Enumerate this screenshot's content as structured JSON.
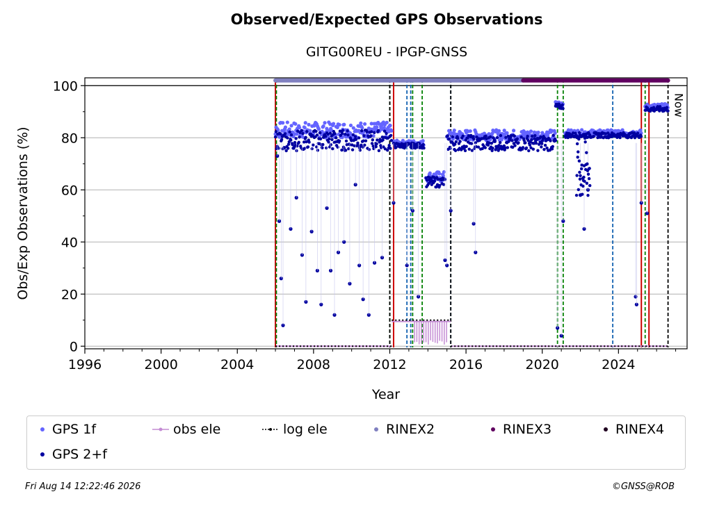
{
  "header": {
    "title": "Observed/Expected GPS Observations",
    "subtitle": "GITG00REU - IPGP-GNSS"
  },
  "footer": {
    "timestamp": "Fri Aug 14 12:22:46 2026",
    "credit": "©GNSS@ROB"
  },
  "colors": {
    "gps_1f": "#6464ff",
    "gps_2f": "#0000a0",
    "obs_ele": "#c48cd4",
    "log_ele": "#000000",
    "rinex2": "#8080c0",
    "rinex3": "#600060",
    "rinex4": "#200020",
    "event_red": "#cc0000",
    "event_green": "#008000",
    "event_blue": "#1060b0"
  },
  "chart_data": {
    "type": "scatter",
    "title": "Observed/Expected GPS Observations",
    "subtitle": "GITG00REU - IPGP-GNSS",
    "xlabel": "Year",
    "ylabel": "Obs/Exp Observations (%)",
    "xlim": [
      1996,
      2027.6
    ],
    "ylim": [
      -1,
      103
    ],
    "x_ticks": [
      1996,
      2000,
      2004,
      2008,
      2012,
      2016,
      2020,
      2024
    ],
    "y_ticks": [
      0,
      20,
      40,
      60,
      80,
      100
    ],
    "grid": "horizontal",
    "now_label": "Now",
    "now_x": 2026.6,
    "legend": {
      "placement": "bottom",
      "entries": [
        "GPS 1f",
        "obs ele",
        "log ele",
        "RINEX2",
        "RINEX3",
        "RINEX4",
        "GPS 2+f"
      ]
    },
    "series": [
      {
        "name": "GPS 1f",
        "segments": [
          {
            "x": [
              2006.0,
              2012.1
            ],
            "level": 83,
            "spread": 3
          },
          {
            "x": [
              2012.2,
              2013.8
            ],
            "level": 78,
            "spread": 1
          },
          {
            "x": [
              2013.9,
              2014.9
            ],
            "level": 65,
            "spread": 2
          },
          {
            "x": [
              2015.0,
              2020.7
            ],
            "level": 81,
            "spread": 2
          },
          {
            "x": [
              2020.7,
              2021.1
            ],
            "level": 93,
            "spread": 1
          },
          {
            "x": [
              2021.2,
              2025.2
            ],
            "level": 82,
            "spread": 1
          },
          {
            "x": [
              2025.4,
              2026.6
            ],
            "level": 92,
            "spread": 1
          }
        ]
      },
      {
        "name": "GPS 2+f",
        "segments": [
          {
            "x": [
              2006.0,
              2012.1
            ],
            "level": 79,
            "spread": 4
          },
          {
            "x": [
              2012.2,
              2013.8
            ],
            "level": 77,
            "spread": 1
          },
          {
            "x": [
              2013.9,
              2014.9
            ],
            "level": 63,
            "spread": 2
          },
          {
            "x": [
              2015.0,
              2020.7
            ],
            "level": 78,
            "spread": 3
          },
          {
            "x": [
              2020.7,
              2021.1
            ],
            "level": 92,
            "spread": 1
          },
          {
            "x": [
              2021.2,
              2025.2
            ],
            "level": 81,
            "spread": 1
          },
          {
            "x": [
              2025.4,
              2026.6
            ],
            "level": 91,
            "spread": 1
          }
        ],
        "outliers": [
          {
            "x": 2006.1,
            "y": 73
          },
          {
            "x": 2006.2,
            "y": 48
          },
          {
            "x": 2006.3,
            "y": 26
          },
          {
            "x": 2006.4,
            "y": 8
          },
          {
            "x": 2006.8,
            "y": 45
          },
          {
            "x": 2007.1,
            "y": 57
          },
          {
            "x": 2007.4,
            "y": 35
          },
          {
            "x": 2007.6,
            "y": 17
          },
          {
            "x": 2007.9,
            "y": 44
          },
          {
            "x": 2008.2,
            "y": 29
          },
          {
            "x": 2008.4,
            "y": 16
          },
          {
            "x": 2008.7,
            "y": 53
          },
          {
            "x": 2008.9,
            "y": 29
          },
          {
            "x": 2009.1,
            "y": 12
          },
          {
            "x": 2009.3,
            "y": 36
          },
          {
            "x": 2009.6,
            "y": 40
          },
          {
            "x": 2009.9,
            "y": 24
          },
          {
            "x": 2010.2,
            "y": 62
          },
          {
            "x": 2010.4,
            "y": 31
          },
          {
            "x": 2010.6,
            "y": 18
          },
          {
            "x": 2010.9,
            "y": 12
          },
          {
            "x": 2011.2,
            "y": 32
          },
          {
            "x": 2011.6,
            "y": 34
          },
          {
            "x": 2012.2,
            "y": 55
          },
          {
            "x": 2012.9,
            "y": 31
          },
          {
            "x": 2013.2,
            "y": 52
          },
          {
            "x": 2013.5,
            "y": 19
          },
          {
            "x": 2014.9,
            "y": 33
          },
          {
            "x": 2015.0,
            "y": 31
          },
          {
            "x": 2015.2,
            "y": 52
          },
          {
            "x": 2016.4,
            "y": 47
          },
          {
            "x": 2016.5,
            "y": 36
          },
          {
            "x": 2020.8,
            "y": 7
          },
          {
            "x": 2021.0,
            "y": 4
          },
          {
            "x": 2021.1,
            "y": 48
          },
          {
            "x": 2022.0,
            "y": 58
          },
          {
            "x": 2022.2,
            "y": 45
          },
          {
            "x": 2022.4,
            "y": 60
          },
          {
            "x": 2024.9,
            "y": 19
          },
          {
            "x": 2024.95,
            "y": 16
          },
          {
            "x": 2025.2,
            "y": 55
          },
          {
            "x": 2025.5,
            "y": 51
          }
        ]
      },
      {
        "name": "obs ele",
        "segments": [
          {
            "x": [
              2006.0,
              2012.1
            ],
            "level": 0
          },
          {
            "x": [
              2012.1,
              2015.2
            ],
            "level": 9.5
          },
          {
            "x": [
              2015.2,
              2026.6
            ],
            "level": 0
          }
        ]
      },
      {
        "name": "log ele",
        "segments": [
          {
            "x": [
              2006.0,
              2012.1
            ],
            "level": 0
          },
          {
            "x": [
              2012.1,
              2015.2
            ],
            "level": 10
          },
          {
            "x": [
              2015.2,
              2026.6
            ],
            "level": 0
          }
        ]
      },
      {
        "name": "RINEX2",
        "x": [
          2006.0,
          2019.0
        ],
        "y": 102
      },
      {
        "name": "RINEX3",
        "x": [
          2019.0,
          2026.6
        ],
        "y": 102
      },
      {
        "name": "RINEX4",
        "x": [],
        "y": 102
      }
    ],
    "event_lines": {
      "red": [
        2006.0,
        2012.2,
        2025.2,
        2025.6
      ],
      "green": [
        2006.05,
        2012.0,
        2013.2,
        2013.7,
        2020.8,
        2021.1,
        2025.4
      ],
      "blue": [
        2012.9,
        2013.1,
        2015.2,
        2023.7
      ],
      "black": [
        2012.0,
        2015.2,
        2026.6
      ]
    }
  }
}
